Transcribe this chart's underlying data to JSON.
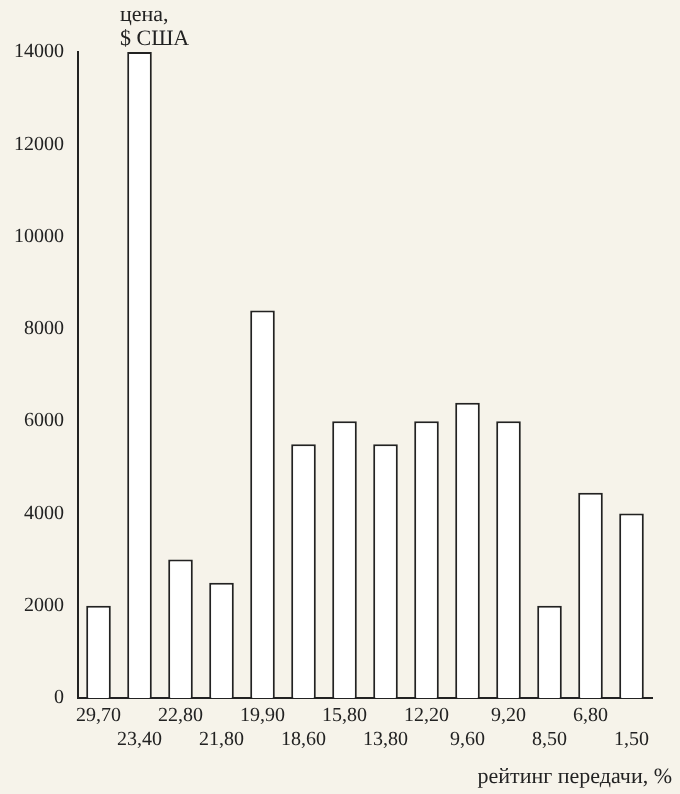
{
  "chart_data": {
    "type": "bar",
    "ylabel": "цена, $ США",
    "xlabel": "рейтинг передачи, %",
    "categories": [
      "29,70",
      "23,40",
      "22,80",
      "21,80",
      "19,90",
      "18,60",
      "15,80",
      "13,80",
      "12,20",
      "9,60",
      "9,20",
      "8,50",
      "6,80",
      "1,50"
    ],
    "values": [
      2000,
      14000,
      3000,
      2500,
      8400,
      5500,
      6000,
      5500,
      6000,
      6400,
      6000,
      2000,
      4450,
      4000
    ],
    "color": "#ffffff",
    "ylim": [
      0,
      14000
    ],
    "yticks": [
      0,
      2000,
      4000,
      6000,
      8000,
      10000,
      12000,
      14000
    ],
    "grid": false,
    "legend": false
  }
}
